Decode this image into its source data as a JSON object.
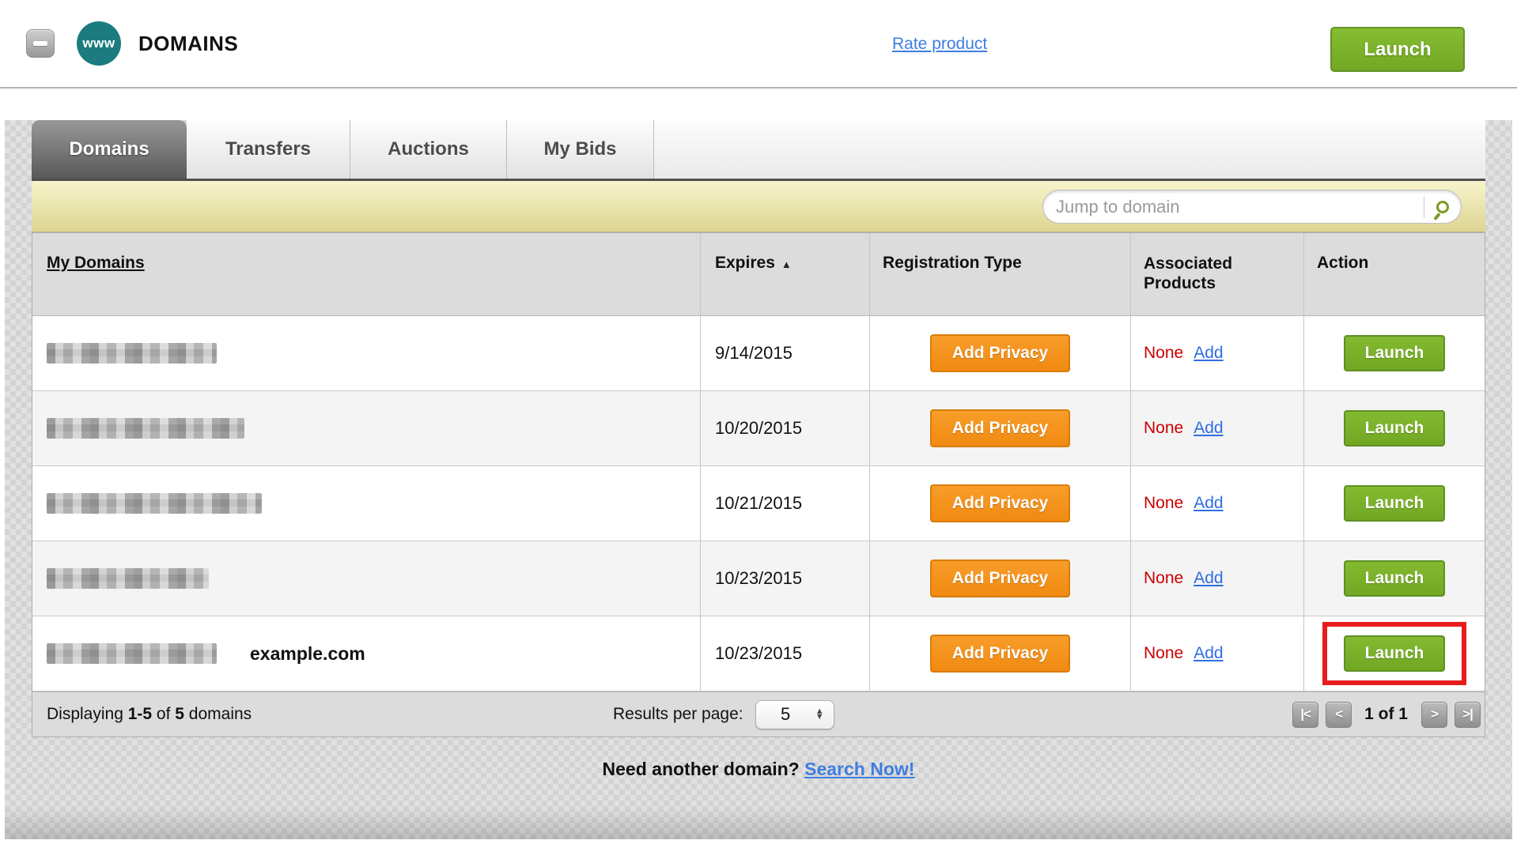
{
  "header": {
    "logo_text": "www",
    "title": "DOMAINS",
    "rate_product_link": "Rate product",
    "launch_button": "Launch"
  },
  "tabs": {
    "domains": "Domains",
    "transfers": "Transfers",
    "auctions": "Auctions",
    "my_bids": "My Bids"
  },
  "search": {
    "placeholder": "Jump to domain"
  },
  "table": {
    "headers": {
      "my_domains": "My Domains",
      "expires": "Expires",
      "registration_type": "Registration Type",
      "associated_products": "Associated Products",
      "action": "Action"
    },
    "rows": [
      {
        "expires": "9/14/2015",
        "registration_action": "Add Privacy",
        "associated_status": "None",
        "associated_action": "Add",
        "action": "Launch"
      },
      {
        "expires": "10/20/2015",
        "registration_action": "Add Privacy",
        "associated_status": "None",
        "associated_action": "Add",
        "action": "Launch"
      },
      {
        "expires": "10/21/2015",
        "registration_action": "Add Privacy",
        "associated_status": "None",
        "associated_action": "Add",
        "action": "Launch"
      },
      {
        "expires": "10/23/2015",
        "registration_action": "Add Privacy",
        "associated_status": "None",
        "associated_action": "Add",
        "action": "Launch"
      },
      {
        "expires": "10/23/2015",
        "domain_label": "example.com",
        "registration_action": "Add Privacy",
        "associated_status": "None",
        "associated_action": "Add",
        "action": "Launch"
      }
    ]
  },
  "footer": {
    "displaying_pre": "Displaying ",
    "displaying_range": "1-5",
    "displaying_mid": " of ",
    "displaying_total": "5",
    "displaying_post": " domains",
    "results_per_page_label": "Results per page:",
    "results_per_page_value": "5",
    "page_indicator": "1 of 1"
  },
  "bottom": {
    "prompt": "Need another domain? ",
    "link": "Search Now!"
  },
  "icons": {
    "sort_ascending": "▲",
    "stepper_up": "▲",
    "stepper_down": "▼",
    "page_first": "|<",
    "page_prev": "<",
    "page_next": ">",
    "page_last": ">|"
  },
  "colors": {
    "brand_teal": "#1b7b7e",
    "action_green": "#7cb42d",
    "privacy_orange": "#f7941e",
    "link_blue": "#3f7de0",
    "status_red": "#cc0000",
    "highlight_red": "#e71d1d"
  }
}
